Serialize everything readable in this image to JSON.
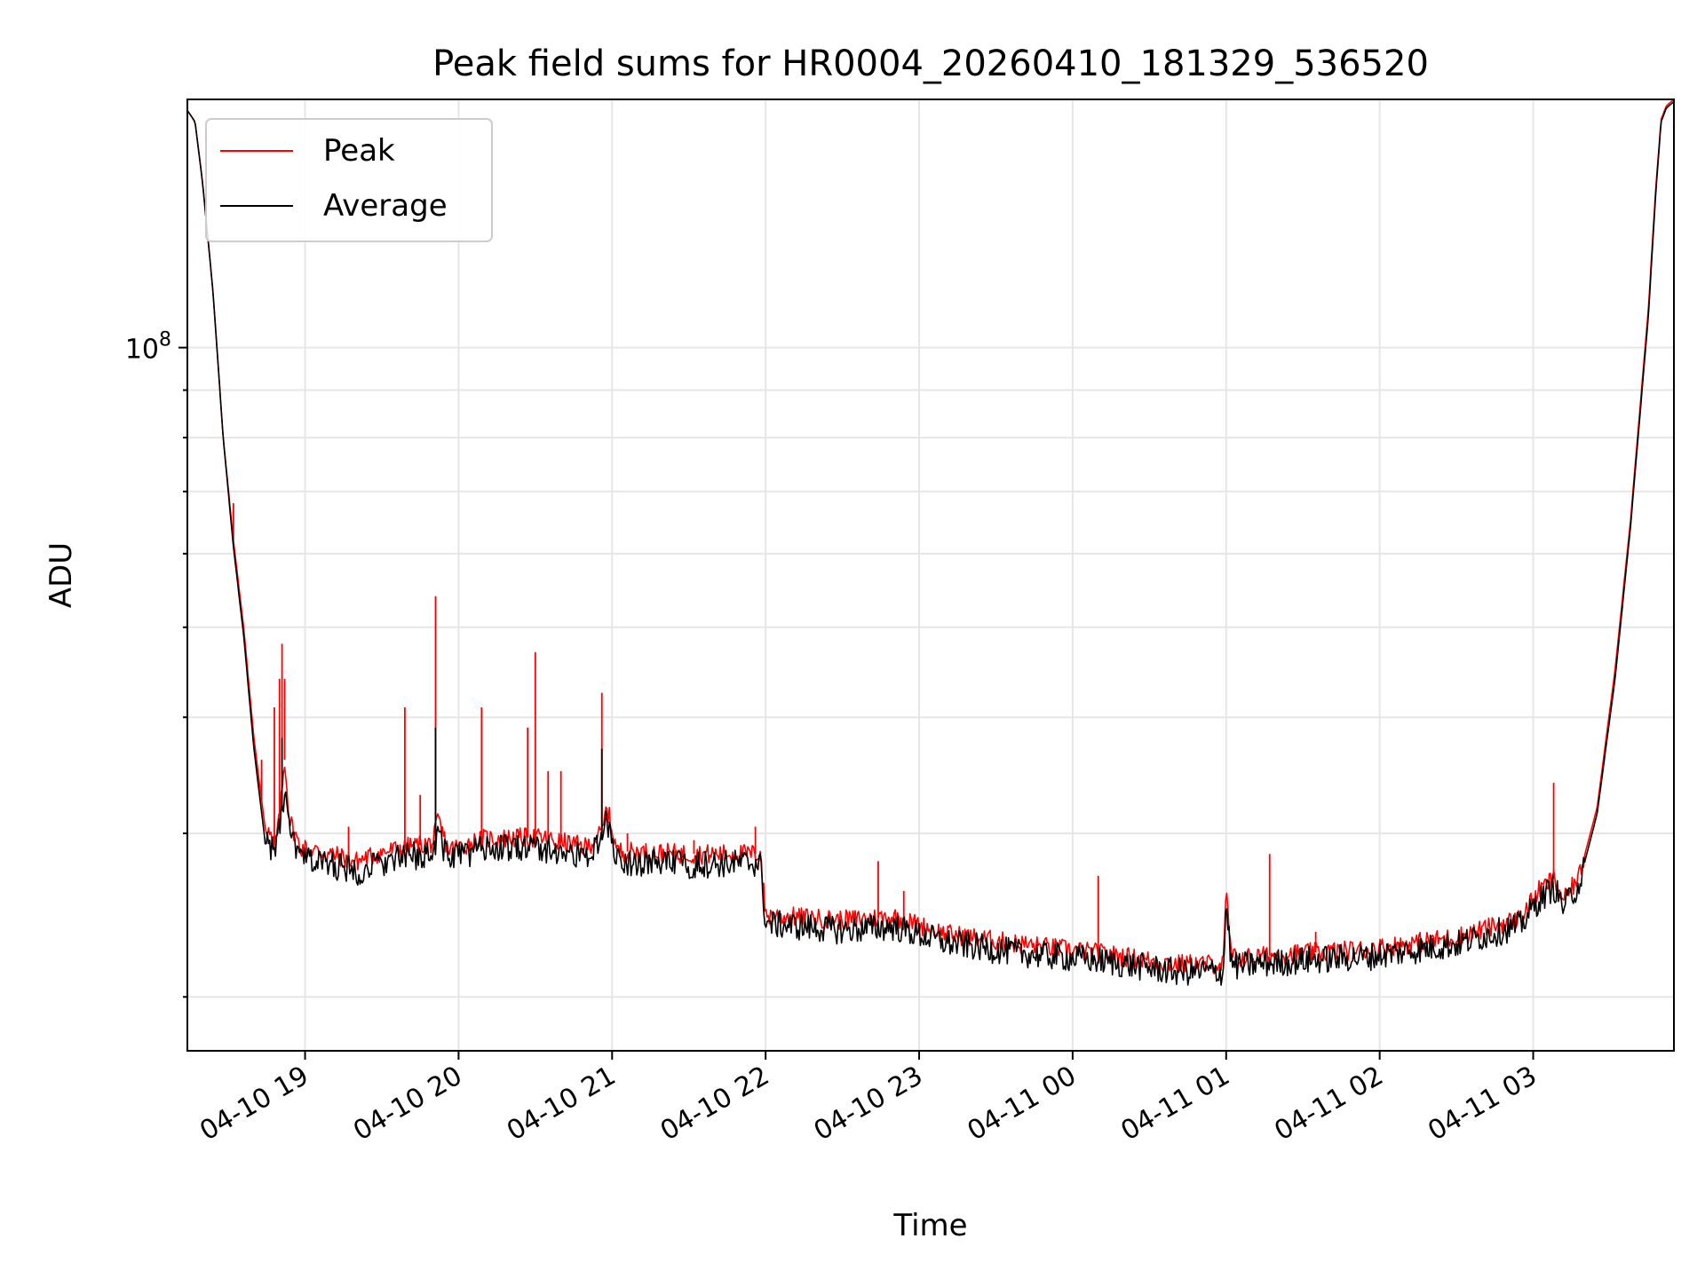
{
  "chart_data": {
    "type": "line",
    "title": "Peak field sums for HR0004_20260410_181329_536520",
    "xlabel": "Time",
    "ylabel": "ADU",
    "y_scale": "log",
    "grid": true,
    "legend_position": "top-left",
    "x_tick_labels": [
      "04-10 19",
      "04-10 20",
      "04-10 21",
      "04-10 22",
      "04-10 23",
      "04-11 00",
      "04-11 01",
      "04-11 02",
      "04-11 03"
    ],
    "x_ticks": [
      "2026-04-10T19:00",
      "2026-04-10T20:00",
      "2026-04-10T21:00",
      "2026-04-10T22:00",
      "2026-04-10T23:00",
      "2026-04-11T00:00",
      "2026-04-11T01:00",
      "2026-04-11T02:00",
      "2026-04-11T03:00"
    ],
    "y_tick_labels": [
      {
        "base": "10",
        "exp": "8"
      }
    ],
    "xlim": [
      "2026-04-10T18:14",
      "2026-04-11T03:55"
    ],
    "ylim": [
      17500000,
      185000000
    ],
    "series": [
      {
        "name": "Peak",
        "color": "#ff0000",
        "x": [
          "2026-04-10T18:14",
          "2026-04-10T18:17",
          "2026-04-10T18:20",
          "2026-04-10T18:24",
          "2026-04-10T18:28",
          "2026-04-10T18:32",
          "2026-04-10T18:36",
          "2026-04-10T18:40",
          "2026-04-10T18:44",
          "2026-04-10T18:48",
          "2026-04-10T18:50",
          "2026-04-10T18:52",
          "2026-04-10T18:54",
          "2026-04-10T18:58",
          "2026-04-10T19:10",
          "2026-04-10T19:20",
          "2026-04-10T19:30",
          "2026-04-10T19:40",
          "2026-04-10T19:50",
          "2026-04-10T19:52",
          "2026-04-10T19:56",
          "2026-04-10T20:10",
          "2026-04-10T20:30",
          "2026-04-10T20:50",
          "2026-04-10T20:56",
          "2026-04-10T20:58",
          "2026-04-10T21:02",
          "2026-04-10T21:30",
          "2026-04-10T21:58",
          "2026-04-10T22:00",
          "2026-04-10T22:30",
          "2026-04-10T22:50",
          "2026-04-10T23:10",
          "2026-04-10T23:40",
          "2026-04-11T00:10",
          "2026-04-11T00:40",
          "2026-04-11T00:59",
          "2026-04-11T01:00",
          "2026-04-11T01:02",
          "2026-04-11T01:04",
          "2026-04-11T01:30",
          "2026-04-11T01:55",
          "2026-04-11T02:30",
          "2026-04-11T02:55",
          "2026-04-11T03:02",
          "2026-04-11T03:08",
          "2026-04-11T03:12",
          "2026-04-11T03:18",
          "2026-04-11T03:25",
          "2026-04-11T03:32",
          "2026-04-11T03:38",
          "2026-04-11T03:45",
          "2026-04-11T03:48",
          "2026-04-11T03:50",
          "2026-04-11T03:52",
          "2026-04-11T03:55"
        ],
        "y": [
          180000000,
          175000000,
          150000000,
          115000000,
          80000000,
          62000000,
          50000000,
          38000000,
          31000000,
          29000000,
          31000000,
          36000000,
          31000000,
          29000000,
          28500000,
          28000000,
          28600000,
          29000000,
          29300000,
          31000000,
          28800000,
          29600000,
          29700000,
          29000000,
          30000000,
          32000000,
          28700000,
          28500000,
          28500000,
          24500000,
          24200000,
          24400000,
          23400000,
          22800000,
          22300000,
          21700000,
          21700000,
          26000000,
          22100000,
          22000000,
          22300000,
          22500000,
          23200000,
          24300000,
          26000000,
          26800000,
          25400000,
          27000000,
          32000000,
          45000000,
          65000000,
          110000000,
          150000000,
          176000000,
          182000000,
          185000000
        ],
        "spikes": [
          {
            "x": "2026-04-10T18:24",
            "y": 115000000
          },
          {
            "x": "2026-04-10T18:32",
            "y": 68000000
          },
          {
            "x": "2026-04-10T18:43",
            "y": 36000000
          },
          {
            "x": "2026-04-10T18:48",
            "y": 41000000
          },
          {
            "x": "2026-04-10T18:50",
            "y": 44000000
          },
          {
            "x": "2026-04-10T18:51",
            "y": 48000000
          },
          {
            "x": "2026-04-10T18:52",
            "y": 44000000
          },
          {
            "x": "2026-04-10T19:17",
            "y": 30500000
          },
          {
            "x": "2026-04-10T19:39",
            "y": 41000000
          },
          {
            "x": "2026-04-10T19:45",
            "y": 33000000
          },
          {
            "x": "2026-04-10T19:51",
            "y": 54000000
          },
          {
            "x": "2026-04-10T20:09",
            "y": 41000000
          },
          {
            "x": "2026-04-10T20:27",
            "y": 39000000
          },
          {
            "x": "2026-04-10T20:30",
            "y": 47000000
          },
          {
            "x": "2026-04-10T20:35",
            "y": 35000000
          },
          {
            "x": "2026-04-10T20:40",
            "y": 35000000
          },
          {
            "x": "2026-04-10T20:56",
            "y": 42500000
          },
          {
            "x": "2026-04-10T21:06",
            "y": 30000000
          },
          {
            "x": "2026-04-10T21:32",
            "y": 29500000
          },
          {
            "x": "2026-04-10T21:56",
            "y": 30500000
          },
          {
            "x": "2026-04-10T22:44",
            "y": 28000000
          },
          {
            "x": "2026-04-10T22:54",
            "y": 26000000
          },
          {
            "x": "2026-04-11T00:10",
            "y": 27000000
          },
          {
            "x": "2026-04-11T01:17",
            "y": 28500000
          },
          {
            "x": "2026-04-11T01:35",
            "y": 23500000
          },
          {
            "x": "2026-04-11T03:08",
            "y": 34000000
          }
        ]
      },
      {
        "name": "Average",
        "color": "#000000",
        "x": [
          "2026-04-10T18:14",
          "2026-04-10T18:17",
          "2026-04-10T18:20",
          "2026-04-10T18:24",
          "2026-04-10T18:28",
          "2026-04-10T18:32",
          "2026-04-10T18:36",
          "2026-04-10T18:40",
          "2026-04-10T18:44",
          "2026-04-10T18:48",
          "2026-04-10T18:50",
          "2026-04-10T18:52",
          "2026-04-10T18:54",
          "2026-04-10T18:58",
          "2026-04-10T19:10",
          "2026-04-10T19:20",
          "2026-04-10T19:30",
          "2026-04-10T19:40",
          "2026-04-10T19:50",
          "2026-04-10T19:52",
          "2026-04-10T19:56",
          "2026-04-10T20:10",
          "2026-04-10T20:30",
          "2026-04-10T20:50",
          "2026-04-10T20:56",
          "2026-04-10T20:58",
          "2026-04-10T21:02",
          "2026-04-10T21:30",
          "2026-04-10T21:58",
          "2026-04-10T22:00",
          "2026-04-10T22:30",
          "2026-04-10T22:50",
          "2026-04-10T23:10",
          "2026-04-10T23:40",
          "2026-04-11T00:10",
          "2026-04-11T00:40",
          "2026-04-11T00:59",
          "2026-04-11T01:00",
          "2026-04-11T01:02",
          "2026-04-11T01:04",
          "2026-04-11T01:30",
          "2026-04-11T01:55",
          "2026-04-11T02:30",
          "2026-04-11T02:55",
          "2026-04-11T03:02",
          "2026-04-11T03:08",
          "2026-04-11T03:12",
          "2026-04-11T03:18",
          "2026-04-11T03:25",
          "2026-04-11T03:32",
          "2026-04-11T03:38",
          "2026-04-11T03:45",
          "2026-04-11T03:48",
          "2026-04-11T03:50",
          "2026-04-11T03:52",
          "2026-04-11T03:55"
        ],
        "y": [
          180000000,
          175000000,
          150000000,
          115000000,
          80000000,
          61000000,
          49000000,
          37000000,
          30000000,
          28500000,
          30500000,
          33000000,
          30000000,
          28200000,
          27800000,
          27300000,
          27900000,
          28300000,
          28600000,
          30000000,
          28200000,
          28900000,
          29000000,
          28300000,
          29500000,
          31000000,
          28000000,
          27800000,
          27900000,
          24000000,
          23600000,
          23800000,
          22900000,
          22300000,
          21900000,
          21300000,
          21300000,
          25500000,
          21700000,
          21600000,
          21900000,
          22100000,
          22800000,
          23900000,
          25400000,
          26300000,
          25000000,
          26500000,
          31500000,
          44000000,
          64000000,
          108000000,
          148000000,
          175000000,
          181000000,
          184000000
        ],
        "spikes": [
          {
            "x": "2026-04-10T18:51",
            "y": 38000000
          },
          {
            "x": "2026-04-10T19:51",
            "y": 39000000
          },
          {
            "x": "2026-04-10T20:56",
            "y": 37000000
          }
        ]
      }
    ]
  }
}
